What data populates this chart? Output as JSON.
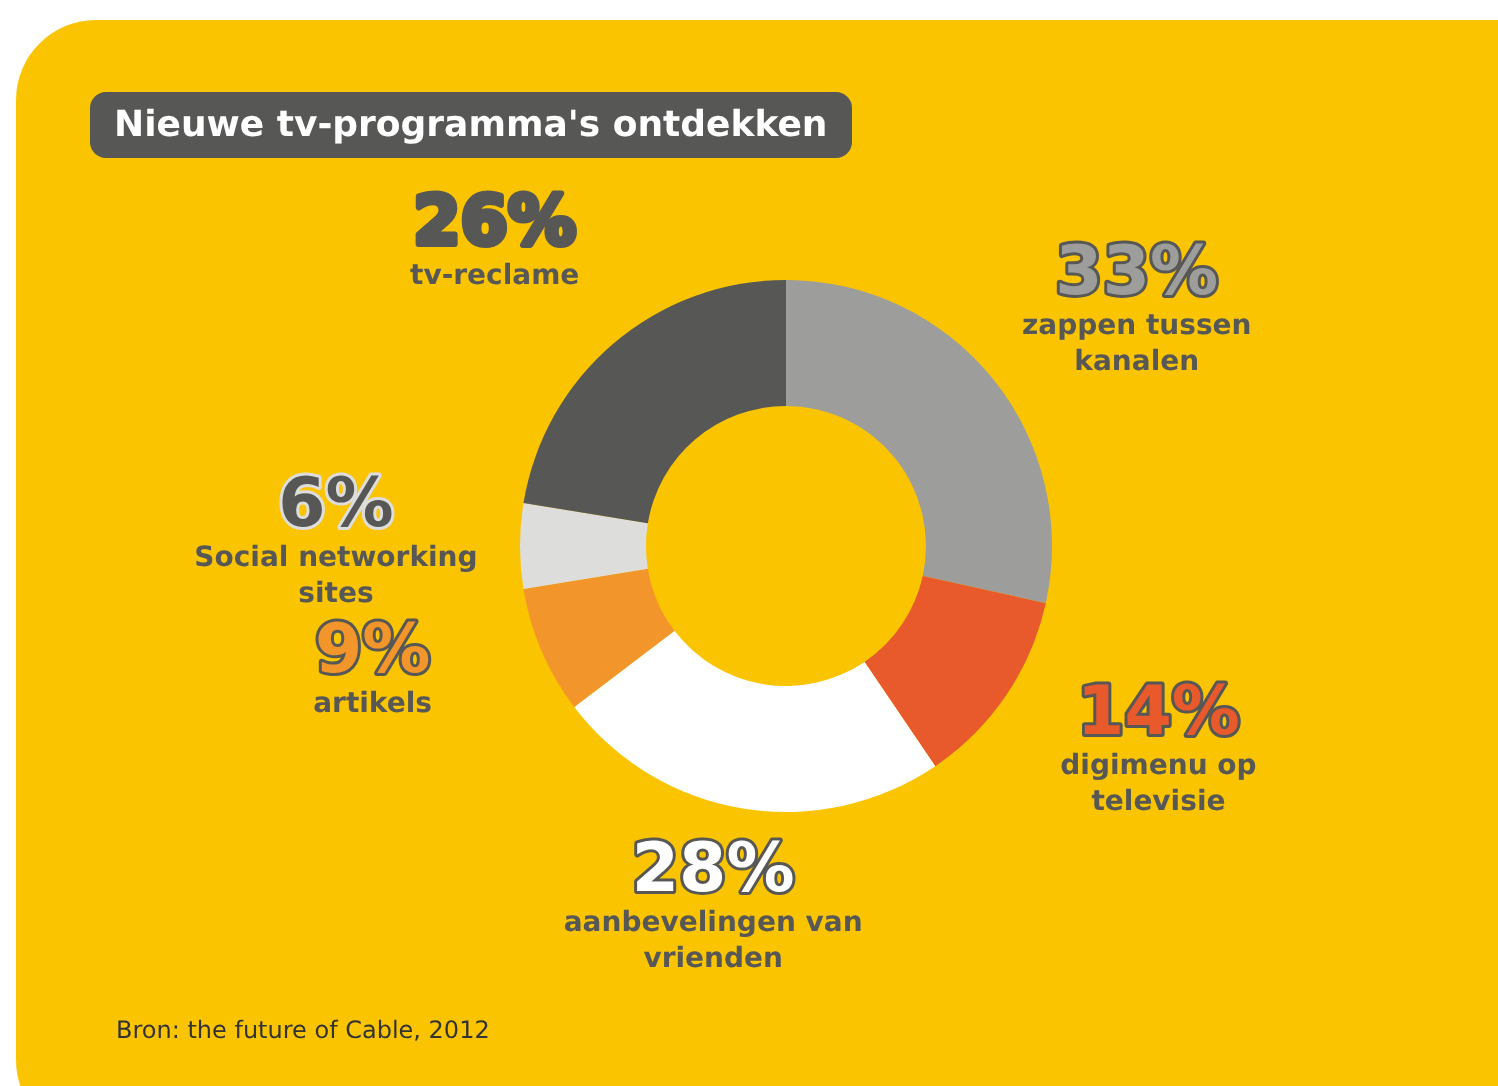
{
  "chart_data": {
    "type": "donut",
    "title": "Nieuwe tv-programma's ontdekken",
    "categories": [
      "zappen tussen kanalen",
      "digimenu op televisie",
      "aanbevelingen van vrienden",
      "artikels",
      "Social networking sites",
      "tv-reclame"
    ],
    "values": [
      33,
      14,
      28,
      9,
      6,
      26
    ],
    "value_labels": [
      "33%",
      "14%",
      "28%",
      "9%",
      "6%",
      "26%"
    ],
    "colors": [
      "#9d9d9c",
      "#e8592b",
      "#ffffff",
      "#f2952a",
      "#dddddc",
      "#575756"
    ],
    "annotations": [
      "Bron: the future of Cable, 2012"
    ]
  }
}
